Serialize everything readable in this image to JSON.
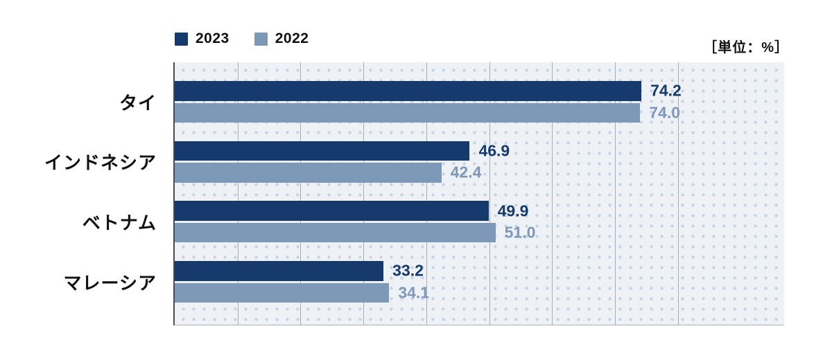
{
  "legend": {
    "items": [
      {
        "label": "2023",
        "color": "#173a6d"
      },
      {
        "label": "2022",
        "color": "#7e99b8"
      }
    ]
  },
  "unit_label": "［単位：%］",
  "chart_data": {
    "type": "bar",
    "orientation": "horizontal",
    "title": "",
    "xlabel": "",
    "ylabel": "",
    "unit": "%",
    "categories": [
      "タイ",
      "インドネシア",
      "ベトナム",
      "マレーシア"
    ],
    "series": [
      {
        "name": "2023",
        "color": "#173a6d",
        "values": [
          74.2,
          46.9,
          49.9,
          33.2
        ]
      },
      {
        "name": "2022",
        "color": "#7e99b8",
        "values": [
          74.0,
          42.4,
          51.0,
          34.1
        ]
      }
    ],
    "value_labels": true,
    "xlim": [
      0,
      96.9
    ],
    "gridlines": [
      10,
      20,
      30,
      40,
      50,
      60,
      70,
      80
    ],
    "grid": true,
    "legend_position": "top-left",
    "plot_background": "#eef1f6",
    "dot_pattern_color": "#c6d3e2",
    "gridline_color": "#a7acb2",
    "axis_line_color": "#4b4b4b"
  }
}
